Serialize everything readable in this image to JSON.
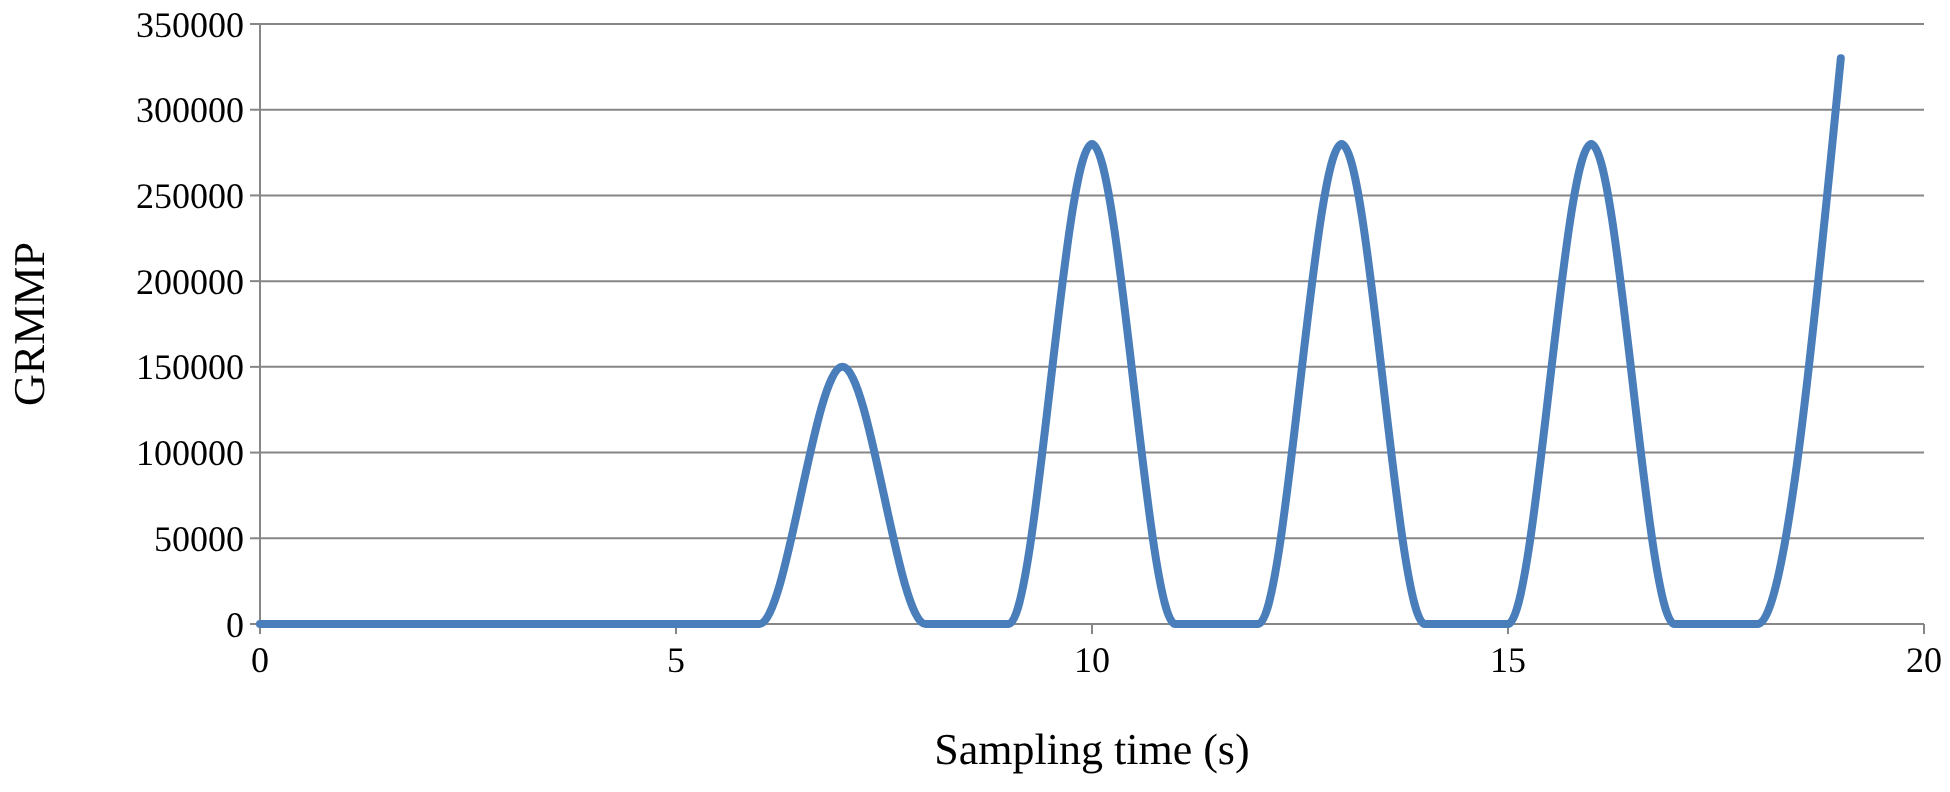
{
  "chart_data": {
    "type": "line",
    "xlabel": "Sampling time (s)",
    "ylabel": "GRMMP",
    "x": [
      0,
      1,
      2,
      3,
      4,
      5,
      6,
      7,
      8,
      9,
      10,
      11,
      12,
      13,
      14,
      15,
      16,
      17,
      18,
      19
    ],
    "series": [
      {
        "color": "#4a7ebb",
        "values": [
          0,
          0,
          0,
          0,
          0,
          0,
          0,
          150000,
          0,
          0,
          280000,
          0,
          0,
          280000,
          0,
          0,
          280000,
          0,
          0,
          330000
        ]
      }
    ],
    "xlim": [
      0,
      20
    ],
    "xticks": [
      0,
      5,
      10,
      15,
      20
    ],
    "ylim": [
      0,
      350000
    ],
    "yticks": [
      0,
      50000,
      100000,
      150000,
      200000,
      250000,
      300000,
      350000
    ],
    "grid": "y",
    "marker": "none",
    "line_style": "solid"
  }
}
